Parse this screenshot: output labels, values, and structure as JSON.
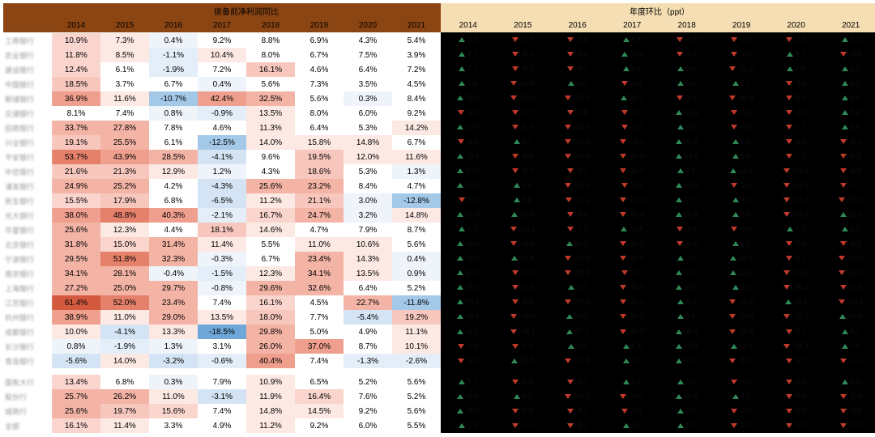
{
  "left_header": "拨备前净利润同比",
  "right_header": "年度环比（ppt）",
  "years": [
    "2014",
    "2015",
    "2016",
    "2017",
    "2018",
    "2019",
    "2020",
    "2021"
  ],
  "row_labels": [
    "工商银行",
    "农业银行",
    "建设银行",
    "中国银行",
    "邮储银行",
    "交通银行",
    "招商银行",
    "兴业银行",
    "平安银行",
    "中信银行",
    "浦发银行",
    "民生银行",
    "光大银行",
    "华夏银行",
    "北京银行",
    "宁波银行",
    "南京银行",
    "上海银行",
    "江苏银行",
    "杭州银行",
    "成都银行",
    "长沙银行",
    "青岛银行"
  ],
  "row_labels2": [
    "国有大行",
    "股份行",
    "城商行",
    "全部"
  ],
  "left": [
    [
      "10.9%",
      "7.3%",
      "0.4%",
      "9.2%",
      "8.8%",
      "6.9%",
      "4.3%",
      "5.4%"
    ],
    [
      "11.8%",
      "8.5%",
      "-1.1%",
      "10.4%",
      "8.0%",
      "6.7%",
      "7.5%",
      "3.9%"
    ],
    [
      "12.4%",
      "6.1%",
      "-1.9%",
      "7.2%",
      "16.1%",
      "4.6%",
      "6.4%",
      "7.2%"
    ],
    [
      "18.5%",
      "3.7%",
      "6.7%",
      "0.4%",
      "5.6%",
      "7.3%",
      "3.5%",
      "4.5%"
    ],
    [
      "36.9%",
      "11.6%",
      "-10.7%",
      "42.4%",
      "32.5%",
      "5.6%",
      "0.3%",
      "8.4%"
    ],
    [
      "8.1%",
      "7.4%",
      "0.8%",
      "-0.9%",
      "13.5%",
      "8.0%",
      "6.0%",
      "9.2%"
    ],
    [
      "33.7%",
      "27.8%",
      "7.8%",
      "4.6%",
      "11.3%",
      "6.4%",
      "5.3%",
      "14.2%"
    ],
    [
      "19.1%",
      "25.5%",
      "6.1%",
      "-12.5%",
      "14.0%",
      "15.8%",
      "14.8%",
      "6.7%"
    ],
    [
      "53.7%",
      "43.9%",
      "28.5%",
      "-4.1%",
      "9.6%",
      "19.5%",
      "12.0%",
      "11.6%"
    ],
    [
      "21.6%",
      "21.3%",
      "12.9%",
      "1.2%",
      "4.3%",
      "18.6%",
      "5.3%",
      "1.3%"
    ],
    [
      "24.9%",
      "25.2%",
      "4.2%",
      "-4.3%",
      "25.6%",
      "23.2%",
      "8.4%",
      "4.7%"
    ],
    [
      "15.5%",
      "17.9%",
      "6.8%",
      "-6.5%",
      "11.2%",
      "21.1%",
      "3.0%",
      "-12.8%"
    ],
    [
      "38.0%",
      "48.8%",
      "40.3%",
      "-2.1%",
      "16.7%",
      "24.7%",
      "3.2%",
      "14.8%"
    ],
    [
      "25.6%",
      "12.3%",
      "4.4%",
      "18.1%",
      "14.6%",
      "4.7%",
      "7.9%",
      "8.7%"
    ],
    [
      "31.8%",
      "15.0%",
      "31.4%",
      "11.4%",
      "5.5%",
      "11.0%",
      "10.6%",
      "5.6%"
    ],
    [
      "29.5%",
      "51.8%",
      "32.3%",
      "-0.3%",
      "6.7%",
      "23.4%",
      "14.3%",
      "0.4%"
    ],
    [
      "34.1%",
      "28.1%",
      "-0.4%",
      "-1.5%",
      "12.3%",
      "34.1%",
      "13.5%",
      "0.9%"
    ],
    [
      "27.2%",
      "25.0%",
      "29.7%",
      "-0.8%",
      "29.6%",
      "32.6%",
      "6.4%",
      "5.2%"
    ],
    [
      "61.4%",
      "52.0%",
      "23.4%",
      "7.4%",
      "16.1%",
      "4.5%",
      "22.7%",
      "-11.8%"
    ],
    [
      "38.9%",
      "11.0%",
      "29.0%",
      "13.5%",
      "18.0%",
      "7.7%",
      "-5.4%",
      "19.2%"
    ],
    [
      "10.0%",
      "-4.1%",
      "13.3%",
      "-18.5%",
      "29.8%",
      "5.0%",
      "4.9%",
      "11.1%"
    ],
    [
      "0.8%",
      "-1.9%",
      "1.3%",
      "3.1%",
      "26.0%",
      "37.0%",
      "8.7%",
      "10.1%"
    ],
    [
      "-5.6%",
      "14.0%",
      "-3.2%",
      "-0.6%",
      "40.4%",
      "7.4%",
      "-1.3%",
      "-2.6%"
    ]
  ],
  "left2": [
    [
      "13.4%",
      "6.8%",
      "0.3%",
      "7.9%",
      "10.9%",
      "6.5%",
      "5.2%",
      "5.6%"
    ],
    [
      "25.7%",
      "26.2%",
      "11.0%",
      "-3.1%",
      "11.9%",
      "16.4%",
      "7.6%",
      "5.2%"
    ],
    [
      "25.6%",
      "19.7%",
      "15.6%",
      "7.4%",
      "14.8%",
      "14.5%",
      "9.2%",
      "5.6%"
    ],
    [
      "16.1%",
      "11.4%",
      "3.3%",
      "4.9%",
      "11.2%",
      "9.2%",
      "6.0%",
      "5.5%"
    ]
  ],
  "heat": [
    [
      "#f9d5ce",
      "#fde9e4",
      "#eef4fa",
      "#fff",
      "#fff",
      "#fff",
      "#fff",
      "#fff"
    ],
    [
      "#f9d5ce",
      "#fde9e4",
      "#e3eef8",
      "#fde9e4",
      "#fff",
      "#fff",
      "#fff",
      "#fff"
    ],
    [
      "#f9d5ce",
      "#fff",
      "#e3eef8",
      "#fff",
      "#f7c7bd",
      "#fff",
      "#fff",
      "#fff"
    ],
    [
      "#f7c7bd",
      "#fff",
      "#fff",
      "#eef4fa",
      "#fff",
      "#fff",
      "#fff",
      "#fff"
    ],
    [
      "#ef9f8e",
      "#fde9e4",
      "#a3c8e8",
      "#ef9f8e",
      "#f3b3a5",
      "#fff",
      "#eef4fa",
      "#fff"
    ],
    [
      "#fff",
      "#fff",
      "#eef4fa",
      "#e3eef8",
      "#fde9e4",
      "#fff",
      "#fff",
      "#fff"
    ],
    [
      "#f3b3a5",
      "#f3b3a5",
      "#fff",
      "#fff",
      "#fde9e4",
      "#fff",
      "#fff",
      "#fde9e4"
    ],
    [
      "#f7c7bd",
      "#f3b3a5",
      "#fff",
      "#a3c8e8",
      "#fde9e4",
      "#fde9e4",
      "#fde9e4",
      "#fff"
    ],
    [
      "#e5806a",
      "#ef9f8e",
      "#f3b3a5",
      "#d4e4f4",
      "#fff",
      "#f7c7bd",
      "#fde9e4",
      "#fde9e4"
    ],
    [
      "#f7c7bd",
      "#f7c7bd",
      "#fde9e4",
      "#eef4fa",
      "#fff",
      "#f7c7bd",
      "#fff",
      "#eef4fa"
    ],
    [
      "#f3b3a5",
      "#f3b3a5",
      "#fff",
      "#d4e4f4",
      "#f3b3a5",
      "#f3b3a5",
      "#fff",
      "#fff"
    ],
    [
      "#f9d5ce",
      "#f7c7bd",
      "#fff",
      "#d4e4f4",
      "#fde9e4",
      "#f7c7bd",
      "#eef4fa",
      "#a3c8e8"
    ],
    [
      "#ef9f8e",
      "#e5806a",
      "#ef9f8e",
      "#e3eef8",
      "#f9d5ce",
      "#f3b3a5",
      "#eef4fa",
      "#fde9e4"
    ],
    [
      "#f3b3a5",
      "#fde9e4",
      "#fff",
      "#f7c7bd",
      "#fde9e4",
      "#fff",
      "#fff",
      "#fff"
    ],
    [
      "#f3b3a5",
      "#f9d5ce",
      "#f3b3a5",
      "#fde9e4",
      "#fff",
      "#fde9e4",
      "#fde9e4",
      "#fff"
    ],
    [
      "#f3b3a5",
      "#e5806a",
      "#f3b3a5",
      "#eef4fa",
      "#fff",
      "#f3b3a5",
      "#fde9e4",
      "#eef4fa"
    ],
    [
      "#f3b3a5",
      "#f3b3a5",
      "#eef4fa",
      "#e3eef8",
      "#fde9e4",
      "#f3b3a5",
      "#fde9e4",
      "#eef4fa"
    ],
    [
      "#f3b3a5",
      "#f3b3a5",
      "#f3b3a5",
      "#eef4fa",
      "#f3b3a5",
      "#f3b3a5",
      "#fff",
      "#fff"
    ],
    [
      "#d45a3f",
      "#e5806a",
      "#f3b3a5",
      "#fff",
      "#f9d5ce",
      "#fff",
      "#f3b3a5",
      "#a3c8e8"
    ],
    [
      "#ef9f8e",
      "#fde9e4",
      "#f3b3a5",
      "#fde9e4",
      "#f7c7bd",
      "#fff",
      "#d4e4f4",
      "#f7c7bd"
    ],
    [
      "#fde9e4",
      "#d4e4f4",
      "#fde9e4",
      "#6fa8d8",
      "#f3b3a5",
      "#fff",
      "#fff",
      "#fde9e4"
    ],
    [
      "#eef4fa",
      "#e3eef8",
      "#eef4fa",
      "#fff",
      "#f3b3a5",
      "#ef9f8e",
      "#fff",
      "#fde9e4"
    ],
    [
      "#d4e4f4",
      "#fde9e4",
      "#d4e4f4",
      "#e3eef8",
      "#ef9f8e",
      "#fff",
      "#e3eef8",
      "#e3eef8"
    ]
  ],
  "heat2": [
    [
      "#f9d5ce",
      "#fff",
      "#eef4fa",
      "#fff",
      "#fde9e4",
      "#fff",
      "#fff",
      "#fff"
    ],
    [
      "#f3b3a5",
      "#f3b3a5",
      "#fde9e4",
      "#d4e4f4",
      "#fde9e4",
      "#f9d5ce",
      "#fff",
      "#fff"
    ],
    [
      "#f3b3a5",
      "#f7c7bd",
      "#f9d5ce",
      "#fff",
      "#fde9e4",
      "#fde9e4",
      "#fff",
      "#fff"
    ],
    [
      "#f9d5ce",
      "#fde9e4",
      "#fff",
      "#fff",
      "#fde9e4",
      "#fff",
      "#fff",
      "#fff"
    ]
  ],
  "right": [
    [
      "u",
      "d",
      "d",
      "u",
      "d",
      "d",
      "d",
      "u"
    ],
    [
      "u",
      "d",
      "d",
      "u",
      "d",
      "d",
      "u",
      "d"
    ],
    [
      "u",
      "d",
      "d",
      "u",
      "u",
      "d",
      "u",
      "u"
    ],
    [
      "u",
      "d",
      "u",
      "d",
      "u",
      "u",
      "d",
      "u"
    ],
    [
      "u",
      "d",
      "d",
      "u",
      "d",
      "d",
      "d",
      "u"
    ],
    [
      "d",
      "d",
      "d",
      "d",
      "u",
      "d",
      "d",
      "u"
    ],
    [
      "u",
      "d",
      "d",
      "d",
      "u",
      "d",
      "d",
      "u"
    ],
    [
      "d",
      "u",
      "d",
      "d",
      "u",
      "u",
      "d",
      "d"
    ],
    [
      "u",
      "d",
      "d",
      "d",
      "u",
      "u",
      "d",
      "d"
    ],
    [
      "u",
      "d",
      "d",
      "d",
      "u",
      "u",
      "d",
      "d"
    ],
    [
      "u",
      "u",
      "d",
      "d",
      "u",
      "d",
      "d",
      "d"
    ],
    [
      "d",
      "u",
      "d",
      "d",
      "u",
      "u",
      "d",
      "d"
    ],
    [
      "u",
      "u",
      "d",
      "d",
      "u",
      "u",
      "d",
      "u"
    ],
    [
      "u",
      "d",
      "d",
      "u",
      "d",
      "d",
      "u",
      "u"
    ],
    [
      "u",
      "d",
      "u",
      "d",
      "d",
      "u",
      "d",
      "d"
    ],
    [
      "u",
      "u",
      "d",
      "d",
      "u",
      "u",
      "d",
      "d"
    ],
    [
      "u",
      "d",
      "d",
      "d",
      "u",
      "u",
      "d",
      "d"
    ],
    [
      "u",
      "d",
      "u",
      "d",
      "u",
      "u",
      "d",
      "d"
    ],
    [
      "u",
      "d",
      "d",
      "d",
      "u",
      "d",
      "u",
      "d"
    ],
    [
      "u",
      "d",
      "u",
      "d",
      "u",
      "d",
      "d",
      "u"
    ],
    [
      "u",
      "d",
      "u",
      "d",
      "u",
      "d",
      "d",
      "u"
    ],
    [
      "d",
      "d",
      "u",
      "u",
      "u",
      "u",
      "d",
      "u"
    ],
    [
      "d",
      "u",
      "d",
      "u",
      "u",
      "d",
      "d",
      "d"
    ]
  ],
  "right2": [
    [
      "u",
      "d",
      "d",
      "u",
      "u",
      "d",
      "d",
      "u"
    ],
    [
      "u",
      "u",
      "d",
      "d",
      "u",
      "u",
      "d",
      "d"
    ],
    [
      "u",
      "d",
      "d",
      "d",
      "u",
      "d",
      "d",
      "d"
    ],
    [
      "u",
      "d",
      "d",
      "u",
      "u",
      "d",
      "d",
      "d"
    ]
  ],
  "rvals": [
    [
      "3.8",
      "-3.7",
      "-6.9",
      "8.8",
      "-0.4",
      "-2.0",
      "-2.5",
      "1.1"
    ],
    [
      "4.7",
      "-3.2",
      "-9.6",
      "11.4",
      "-2.5",
      "-1.2",
      "0.7",
      "-3.6"
    ],
    [
      "7.1",
      "-6.3",
      "-8.0",
      "9.1",
      "8.9",
      "-11.5",
      "1.8",
      "0.9"
    ],
    [
      "4.6",
      "-14.8",
      "3.0",
      "-6.3",
      "5.2",
      "1.7",
      "-3.8",
      "0.9"
    ],
    [
      "29.0",
      "-25.3",
      "-22.3",
      "53.1",
      "-9.9",
      "-26.9",
      "-5.2",
      "8.0"
    ],
    [
      "-0.5",
      "-0.7",
      "-6.6",
      "-1.7",
      "14.4",
      "-5.5",
      "-2.0",
      "3.2"
    ],
    [
      "27.9",
      "-5.9",
      "-20.0",
      "-3.2",
      "6.8",
      "-4.9",
      "-1.1",
      "9.0"
    ],
    [
      "-4.5",
      "6.5",
      "-19.4",
      "-18.6",
      "26.5",
      "1.8",
      "-1.0",
      "-8.1"
    ],
    [
      "23.8",
      "-9.8",
      "-15.4",
      "-32.6",
      "13.7",
      "9.9",
      "-7.5",
      "-0.5"
    ],
    [
      "20.0",
      "-0.3",
      "-8.3",
      "-11.7",
      "3.1",
      "14.2",
      "-13.2",
      "-4.0"
    ],
    [
      "20.3",
      "0.3",
      "-21.0",
      "-8.5",
      "29.9",
      "-2.4",
      "-14.8",
      "-3.7"
    ],
    [
      "8.0",
      "2.4",
      "-11.1",
      "-13.3",
      "17.7",
      "9.9",
      "-18.1",
      "-15.9"
    ],
    [
      "31.9",
      "10.9",
      "-8.5",
      "-42.4",
      "18.8",
      "8.0",
      "-21.5",
      "11.5"
    ],
    [
      "5.3",
      "-13.3",
      "-7.9",
      "13.8",
      "-3.5",
      "-9.9",
      "3.2",
      "0.9"
    ],
    [
      "16.5",
      "-16.8",
      "16.5",
      "-20.0",
      "-5.9",
      "5.5",
      "-0.4",
      "-5.0"
    ],
    [
      "15.5",
      "22.4",
      "-19.5",
      "-32.6",
      "7.0",
      "16.7",
      "-9.1",
      "-13.9"
    ],
    [
      "30.7",
      "-6.0",
      "-28.5",
      "-1.0",
      "13.7",
      "21.8",
      "-20.6",
      "-12.6"
    ],
    [
      "19.0",
      "-2.2",
      "4.7",
      "-30.5",
      "30.5",
      "3.0",
      "-26.2",
      "-1.2"
    ],
    [
      "55.3",
      "-9.4",
      "-28.6",
      "-16.0",
      "8.7",
      "-11.5",
      "18.2",
      "-34.5"
    ],
    [
      "24.6",
      "-28.0",
      "18.0",
      "-15.6",
      "4.5",
      "-10.3",
      "-13.1",
      "24.6"
    ],
    [
      "11.0",
      "-14.1",
      "17.4",
      "-31.8",
      "48.3",
      "-24.8",
      "-0.1",
      "6.2"
    ],
    [
      "-0.6",
      "-2.6",
      "3.2",
      "1.8",
      "22.9",
      "11.0",
      "-28.3",
      "1.5"
    ],
    [
      "-5.6",
      "19.6",
      "-17.2",
      "2.6",
      "41.0",
      "-33.0",
      "-8.7",
      "-1.2"
    ]
  ],
  "rvals2": [
    [
      "5.1",
      "-6.5",
      "-6.5",
      "7.6",
      "3.0",
      "-4.4",
      "-1.3",
      "0.4"
    ],
    [
      "15.6",
      "0.5",
      "-15.2",
      "-14.1",
      "15.0",
      "4.5",
      "-8.9",
      "-2.4"
    ],
    [
      "18.8",
      "-5.9",
      "-4.2",
      "-8.2",
      "7.4",
      "-0.3",
      "-5.3",
      "-3.5"
    ],
    [
      "7.9",
      "-4.6",
      "-8.1",
      "1.6",
      "6.3",
      "-2.0",
      "-3.2",
      "-0.6"
    ]
  ]
}
